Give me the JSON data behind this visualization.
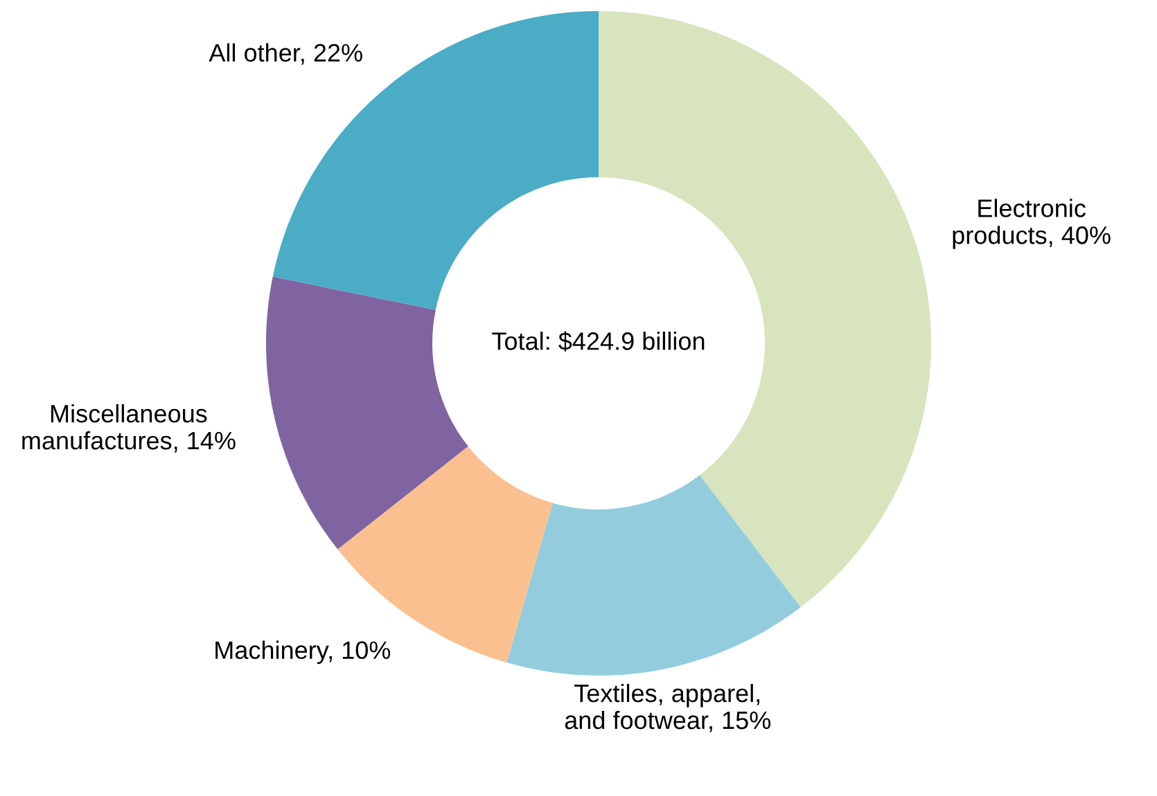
{
  "chart_data": {
    "type": "donut",
    "categories": [
      "Electronic\nproducts",
      "Textiles, apparel,\nand footwear",
      "Machinery",
      "Miscellaneous\nmanufactures",
      "All other"
    ],
    "values": [
      40,
      15,
      10,
      14,
      22
    ],
    "value_labels": [
      "40%",
      "15%",
      "10%",
      "14%",
      "22%"
    ],
    "colors": [
      "#d7e4bd",
      "#93cddd",
      "#fac090",
      "#8064a2",
      "#4bacc6"
    ],
    "annotations": [
      "Total: $424.9 billion"
    ]
  }
}
